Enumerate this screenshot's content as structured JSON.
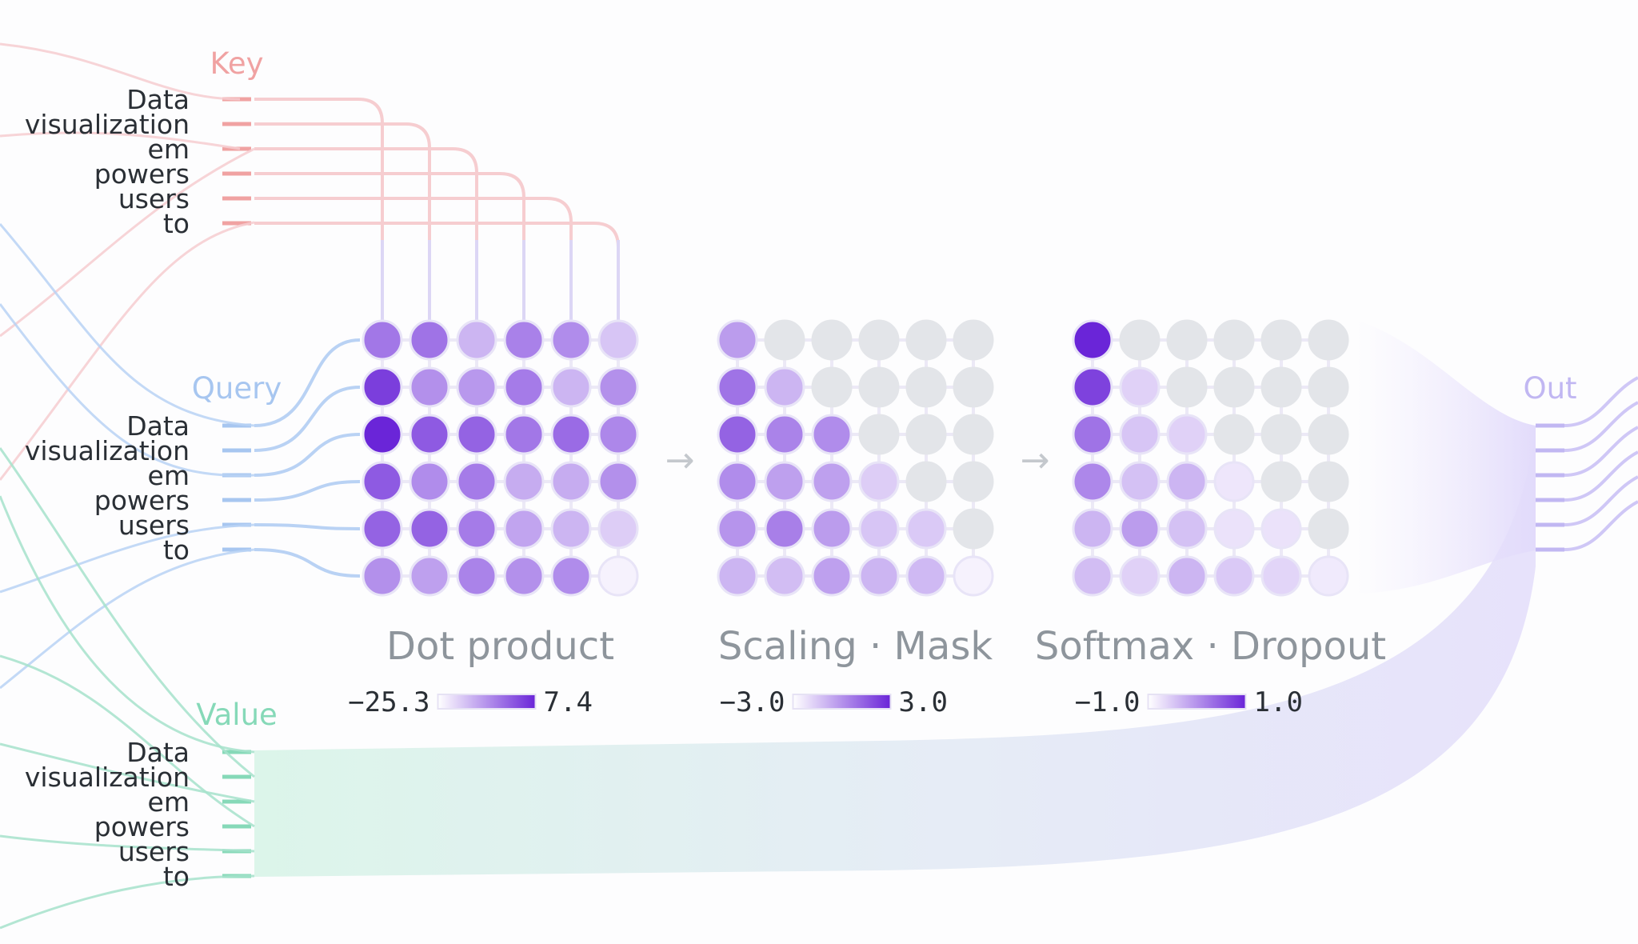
{
  "tokens": [
    "Data",
    "visualization",
    "em",
    "powers",
    "users",
    "to"
  ],
  "sections": {
    "key": {
      "label": "Key",
      "color": "#f0a2a2"
    },
    "query": {
      "label": "Query",
      "color": "#a7c6f0"
    },
    "value": {
      "label": "Value",
      "color": "#86d9b8"
    },
    "out": {
      "label": "Out",
      "color": "#c1b7f2"
    }
  },
  "colors": {
    "accent_dark": "#6a25d8",
    "accent_light": "#f6f2fd",
    "masked": "#e3e5e9",
    "key_line": "#f6cdd0",
    "query_line": "#b9d2f4",
    "value_line": "#a6e2cb",
    "out_line": "#cfc7f6"
  },
  "stages": [
    {
      "title": "Dot product",
      "range_min": "−25.3",
      "range_max": "7.4",
      "values": [
        [
          0.6,
          0.62,
          0.3,
          0.55,
          0.5,
          0.22
        ],
        [
          0.88,
          0.48,
          0.44,
          0.58,
          0.3,
          0.48
        ],
        [
          1.0,
          0.74,
          0.7,
          0.6,
          0.66,
          0.52
        ],
        [
          0.74,
          0.5,
          0.58,
          0.34,
          0.34,
          0.48
        ],
        [
          0.7,
          0.7,
          0.58,
          0.38,
          0.3,
          0.18
        ],
        [
          0.48,
          0.4,
          0.54,
          0.48,
          0.5,
          0.0
        ]
      ]
    },
    {
      "title": "Scaling · Mask",
      "range_min": "−3.0",
      "range_max": "3.0",
      "values": [
        [
          0.42,
          null,
          null,
          null,
          null,
          null
        ],
        [
          0.62,
          0.3,
          null,
          null,
          null,
          null
        ],
        [
          0.7,
          0.54,
          0.5,
          null,
          null,
          null
        ],
        [
          0.5,
          0.4,
          0.4,
          0.18,
          null,
          null
        ],
        [
          0.46,
          0.56,
          0.42,
          0.22,
          0.2,
          null
        ],
        [
          0.3,
          0.26,
          0.4,
          0.3,
          0.28,
          0.0
        ]
      ]
    },
    {
      "title": "Softmax · Dropout",
      "range_min": "−1.0",
      "range_max": "1.0",
      "values": [
        [
          1.0,
          null,
          null,
          null,
          null,
          null
        ],
        [
          0.86,
          0.16,
          null,
          null,
          null,
          null
        ],
        [
          0.62,
          0.22,
          0.16,
          null,
          null,
          null
        ],
        [
          0.52,
          0.24,
          0.3,
          0.06,
          null,
          null
        ],
        [
          0.3,
          0.42,
          0.24,
          0.08,
          0.08,
          null
        ],
        [
          0.26,
          0.16,
          0.3,
          0.2,
          0.14,
          0.04
        ]
      ]
    }
  ]
}
